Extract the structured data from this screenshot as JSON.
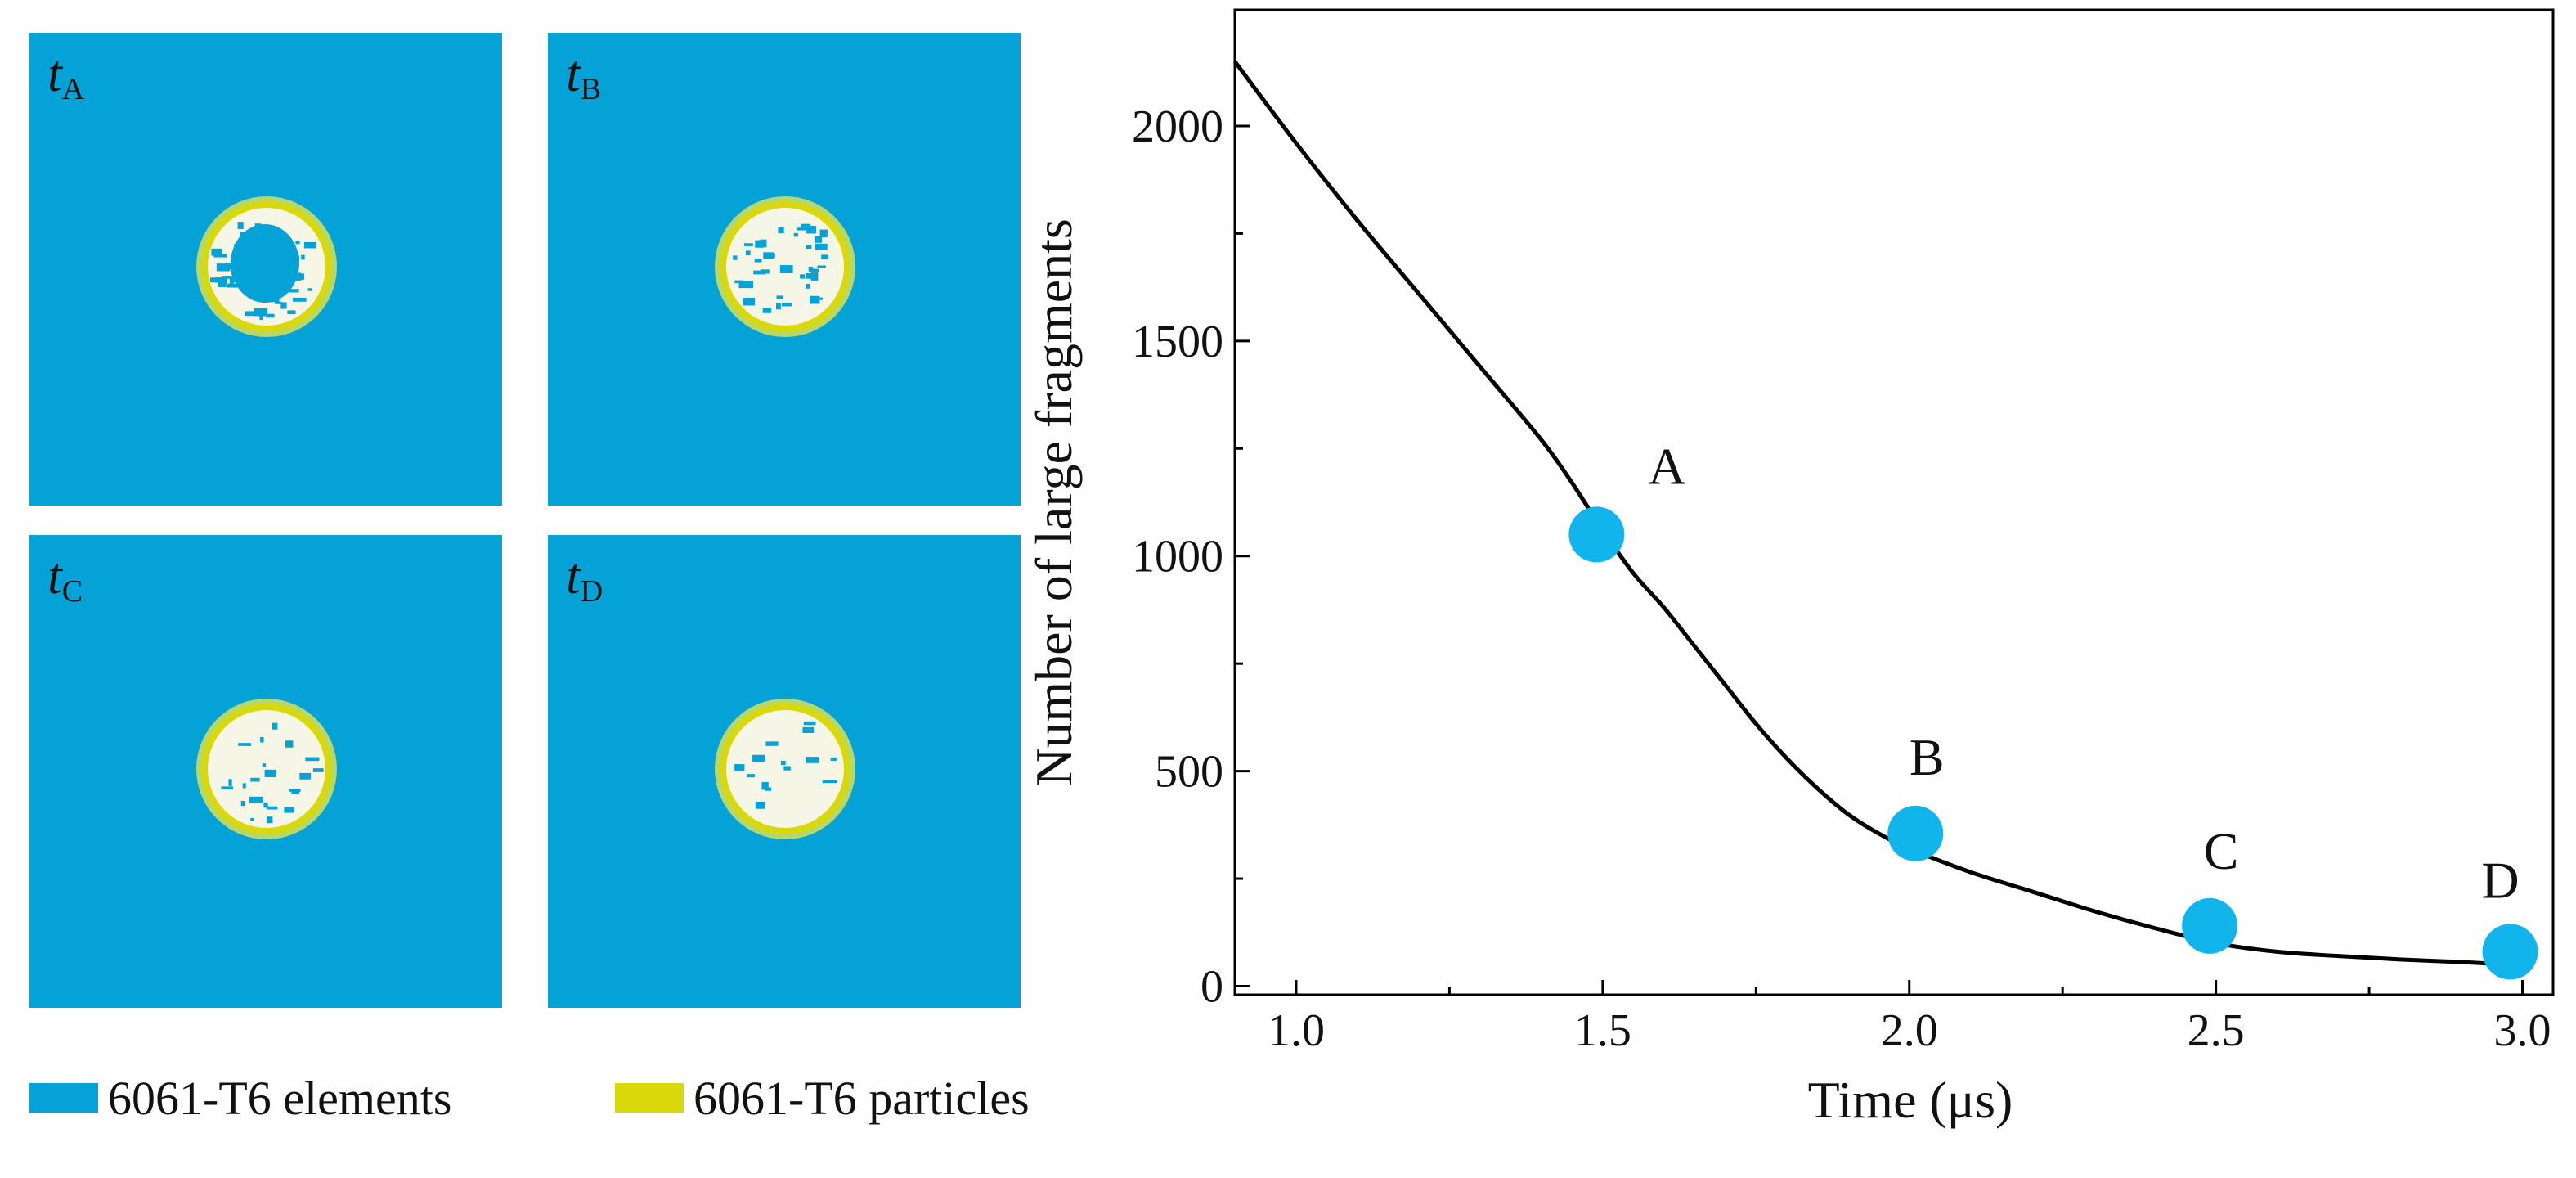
{
  "panels": [
    {
      "id": "a",
      "label": "t",
      "sub": "A",
      "fragments": 60
    },
    {
      "id": "b",
      "label": "t",
      "sub": "B",
      "fragments": 38
    },
    {
      "id": "c",
      "label": "t",
      "sub": "C",
      "fragments": 22
    },
    {
      "id": "d",
      "label": "t",
      "sub": "D",
      "fragments": 14
    }
  ],
  "legend": [
    {
      "label": "6061-T6 elements",
      "color": "#05a2d7"
    },
    {
      "label": "6061-T6 particles",
      "color": "#d8d80a"
    }
  ],
  "colors": {
    "element": "#05a2d7",
    "particle": "#d8d80a",
    "marker": "#12b4ec",
    "line": "#000000"
  },
  "chart_data": {
    "type": "line",
    "xlabel": "Time (μs)",
    "ylabel": "Number of large fragments",
    "xlim": [
      0.9,
      3.05
    ],
    "ylim": [
      -20,
      2270
    ],
    "xticks": [
      1.0,
      1.5,
      2.0,
      2.5,
      3.0
    ],
    "xticklabels": [
      "1.0",
      "1.5",
      "2.0",
      "2.5",
      "3.0"
    ],
    "yticks": [
      0,
      500,
      1000,
      1500,
      2000
    ],
    "yticklabels": [
      "0",
      "500",
      "1000",
      "1500",
      "2000"
    ],
    "series": [
      {
        "name": "large fragments",
        "x": [
          0.9,
          1.0,
          1.1,
          1.2,
          1.3,
          1.4,
          1.45,
          1.5,
          1.55,
          1.6,
          1.65,
          1.7,
          1.75,
          1.8,
          1.85,
          1.9,
          1.95,
          2.0,
          2.1,
          2.2,
          2.3,
          2.4,
          2.5,
          2.6,
          2.7,
          2.8,
          2.9,
          3.0
        ],
        "y": [
          2150,
          1960,
          1780,
          1610,
          1440,
          1270,
          1170,
          1060,
          960,
          880,
          790,
          700,
          610,
          530,
          460,
          400,
          355,
          320,
          265,
          220,
          175,
          135,
          100,
          80,
          70,
          62,
          56,
          48
        ]
      }
    ],
    "points": [
      {
        "label": "A",
        "x": 1.49,
        "y": 1050
      },
      {
        "label": "B",
        "x": 2.01,
        "y": 355
      },
      {
        "label": "C",
        "x": 2.49,
        "y": 140
      },
      {
        "label": "D",
        "x": 2.98,
        "y": 80
      }
    ]
  }
}
